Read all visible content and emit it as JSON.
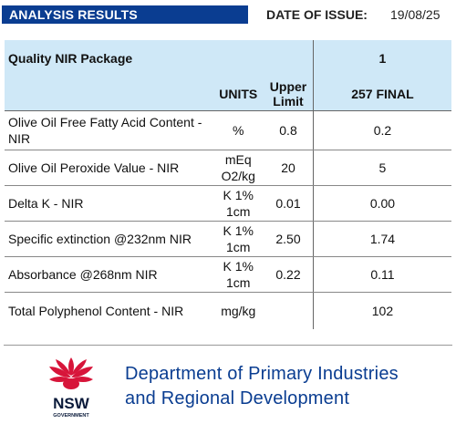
{
  "header": {
    "title": "ANALYSIS RESULTS",
    "date_label": "DATE OF ISSUE:",
    "date_value": "19/08/25"
  },
  "table": {
    "package_label": "Quality NIR Package",
    "package_number": "1",
    "col_units": "UNITS",
    "col_upper_limit": "Upper Limit",
    "col_result": "257 FINAL",
    "rows": [
      {
        "name": "Olive Oil Free Fatty Acid Content - NIR",
        "units": "%",
        "limit": "0.8",
        "result": "0.2"
      },
      {
        "name": "Olive Oil Peroxide Value - NIR",
        "units": "mEq O2/kg",
        "limit": "20",
        "result": "5"
      },
      {
        "name": "Delta K - NIR",
        "units": "K 1% 1cm",
        "limit": "0.01",
        "result": "0.00"
      },
      {
        "name": "Specific extinction @232nm NIR",
        "units": "K 1% 1cm",
        "limit": "2.50",
        "result": "1.74"
      },
      {
        "name": "Absorbance @268nm NIR",
        "units": "K 1% 1cm",
        "limit": "0.22",
        "result": "0.11"
      },
      {
        "name": "Total Polyphenol Content - NIR",
        "units": "mg/kg",
        "limit": "",
        "result": "102"
      }
    ]
  },
  "footer": {
    "logo_text": "NSW",
    "logo_subtext": "GOVERNMENT",
    "dept_line1": "Department of Primary Industries",
    "dept_line2": "and Regional Development",
    "colors": {
      "brand_blue": "#0a3d91",
      "waratah_red": "#d7153a",
      "header_fill": "#cfe8f7"
    }
  }
}
